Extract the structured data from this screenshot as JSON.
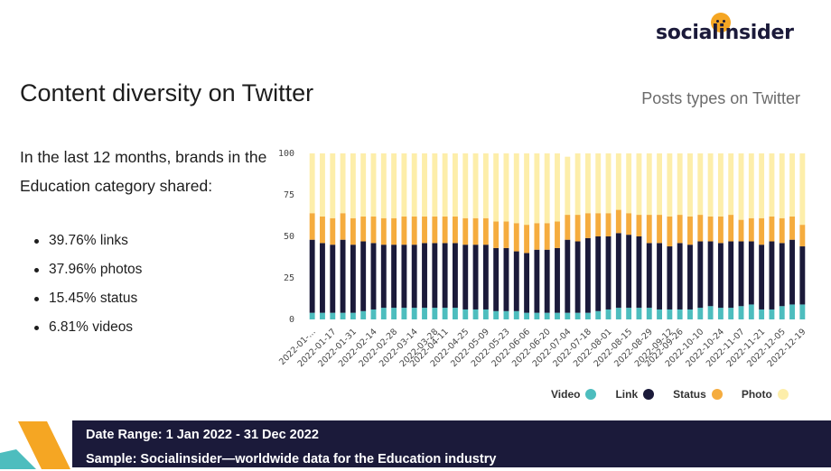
{
  "brand": {
    "logo_text": "socialinsider"
  },
  "page": {
    "title": "Content diversity on Twitter",
    "intro": "In the last 12 months, brands in the Education category shared:",
    "stats": [
      "39.76% links",
      "37.96% photos",
      "15.45% status",
      "6.81% videos"
    ]
  },
  "footer": {
    "date_range": "Date Range: 1 Jan 2022 - 31 Dec 2022",
    "sample": "Sample: Socialinsider—worldwide data for the Education industry"
  },
  "colors": {
    "video": "#4dbdbe",
    "link": "#1b1a3a",
    "status": "#f5ac3e",
    "photo": "#fdeeaa",
    "footer": "#1b1a3a",
    "accent": "#f5a623"
  },
  "chart_data": {
    "type": "bar",
    "stacked": true,
    "title": "Posts types on Twitter",
    "ylim": [
      0,
      100
    ],
    "yticks": [
      0,
      25,
      50,
      75,
      100
    ],
    "grid": false,
    "legend_position": "bottom-right",
    "x_tick_labels": [
      "2022-01-...",
      "2022-01-17",
      "2022-01-31",
      "2022-02-14",
      "2022-02-28",
      "2022-03-14",
      "2022-03-28",
      "2022-04-11",
      "2022-04-25",
      "2022-05-09",
      "2022-05-23",
      "2022-06-06",
      "2022-06-20",
      "2022-07-04",
      "2022-07-18",
      "2022-08-01",
      "2022-08-15",
      "2022-08-29",
      "2022-09-12",
      "2022-09-26",
      "2022-10-10",
      "2022-10-24",
      "2022-11-07",
      "2022-11-21",
      "2022-12-05",
      "2022-12-19"
    ],
    "series": [
      {
        "name": "Video",
        "values": [
          4,
          4,
          4,
          4,
          4,
          5,
          6,
          7,
          7,
          7,
          7,
          7,
          7,
          7,
          7,
          6,
          6,
          6,
          5,
          5,
          5,
          4,
          4,
          4,
          4,
          4,
          4,
          4,
          5,
          6,
          7,
          7,
          7,
          7,
          6,
          6,
          6,
          6,
          7,
          8,
          7,
          7,
          8,
          9,
          6,
          6,
          8,
          9,
          9
        ]
      },
      {
        "name": "Link",
        "values": [
          44,
          42,
          41,
          44,
          41,
          42,
          40,
          38,
          38,
          38,
          38,
          39,
          39,
          39,
          39,
          39,
          39,
          39,
          38,
          38,
          36,
          36,
          38,
          38,
          39,
          44,
          43,
          45,
          45,
          44,
          45,
          44,
          43,
          39,
          40,
          38,
          40,
          39,
          40,
          39,
          39,
          40,
          39,
          38,
          39,
          41,
          38,
          39,
          35
        ]
      },
      {
        "name": "Status",
        "values": [
          16,
          16,
          16,
          16,
          16,
          15,
          16,
          16,
          16,
          17,
          17,
          16,
          16,
          16,
          16,
          16,
          16,
          16,
          16,
          16,
          17,
          17,
          16,
          16,
          16,
          15,
          16,
          15,
          14,
          14,
          14,
          13,
          13,
          17,
          17,
          18,
          17,
          17,
          16,
          15,
          16,
          16,
          13,
          14,
          16,
          15,
          15,
          14,
          13
        ]
      },
      {
        "name": "Photo",
        "values": [
          36,
          38,
          39,
          36,
          39,
          38,
          38,
          39,
          39,
          38,
          38,
          38,
          38,
          38,
          38,
          39,
          39,
          39,
          41,
          41,
          42,
          43,
          42,
          42,
          41,
          35,
          37,
          36,
          36,
          36,
          34,
          36,
          37,
          37,
          37,
          38,
          37,
          38,
          37,
          38,
          38,
          37,
          40,
          39,
          39,
          38,
          39,
          38,
          43
        ]
      }
    ]
  }
}
